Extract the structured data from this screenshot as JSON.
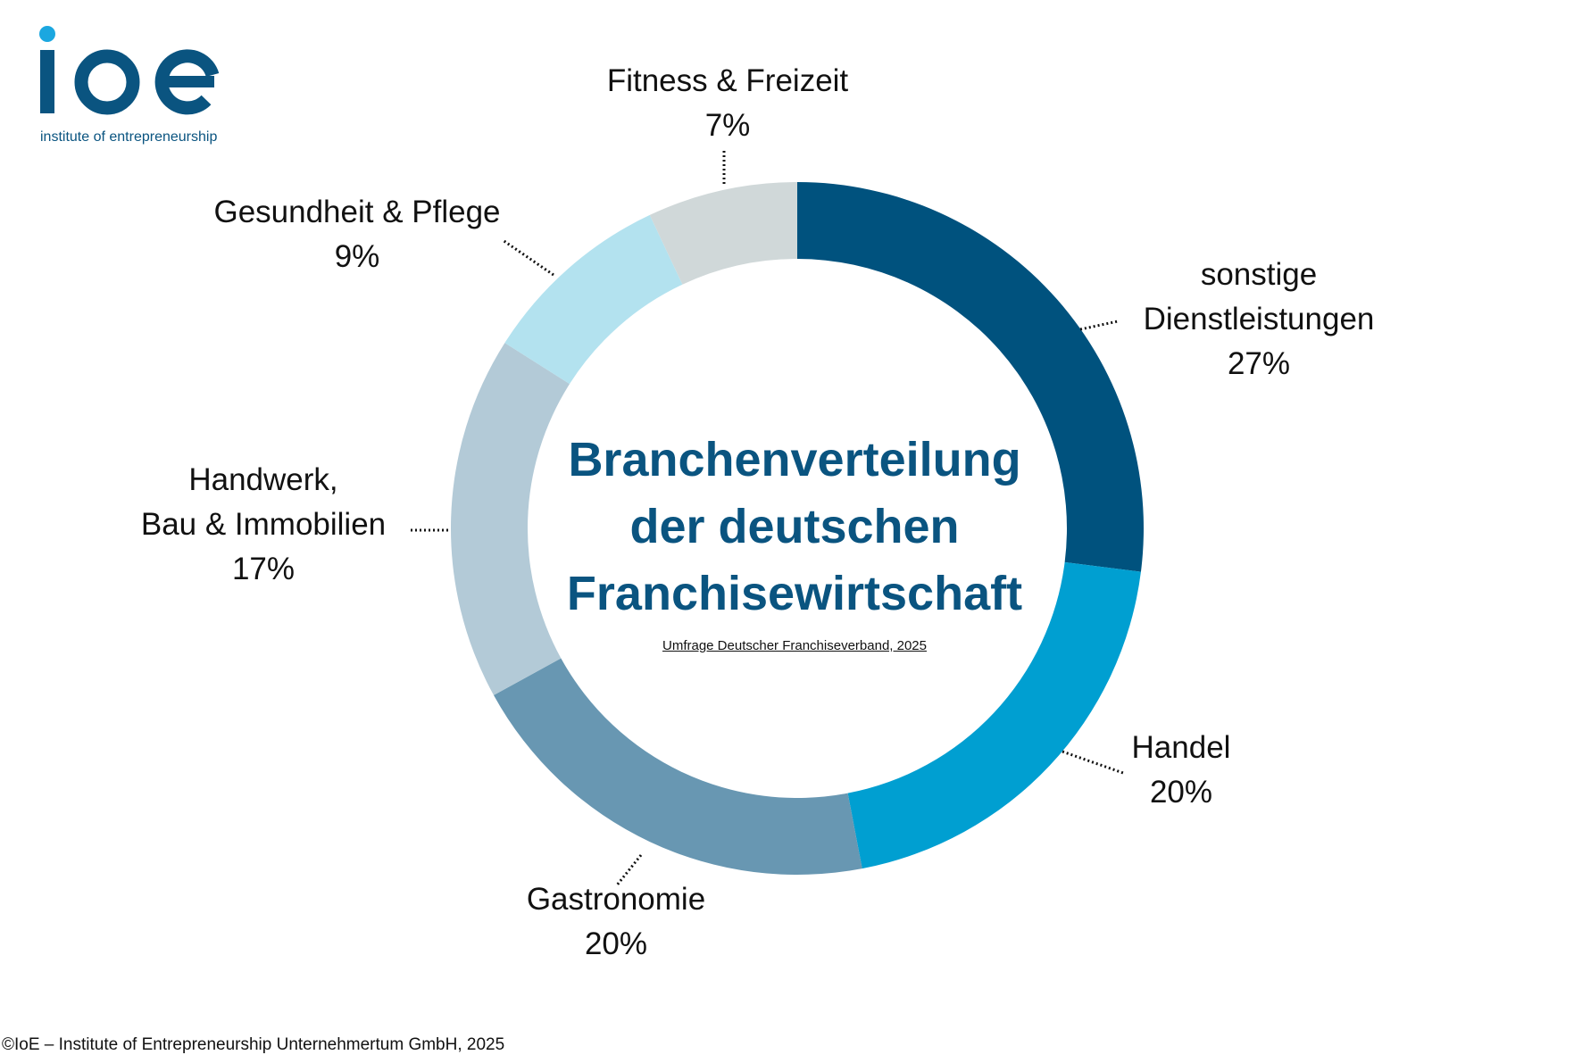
{
  "logo": {
    "wordmark": "ioe",
    "tagline": "institute of entrepreneurship",
    "colors": {
      "dark": "#0a5480",
      "dot": "#1ba7e0"
    }
  },
  "footer": "©IoE – Institute of Entrepreneurship Unternehmertum GmbH, 2025",
  "chart_data": {
    "type": "pie",
    "style": "donut",
    "title_lines": [
      "Branchenverteilung",
      "der deutschen",
      "Franchisewirtschaft"
    ],
    "subtitle": "Umfrage Deutscher Franchiseverband, 2025",
    "start": "12 o'clock, clockwise",
    "slices": [
      {
        "label_lines": [
          "sonstige",
          "Dienstleistungen"
        ],
        "value": 27,
        "value_label": "27%",
        "color": "#00527e"
      },
      {
        "label_lines": [
          "Handel"
        ],
        "value": 20,
        "value_label": "20%",
        "color": "#009fd1"
      },
      {
        "label_lines": [
          "Gastronomie"
        ],
        "value": 20,
        "value_label": "20%",
        "color": "#6897b2"
      },
      {
        "label_lines": [
          "Handwerk,",
          "Bau & Immobilien"
        ],
        "value": 17,
        "value_label": "17%",
        "color": "#b3cad7"
      },
      {
        "label_lines": [
          "Gesundheit & Pflege"
        ],
        "value": 9,
        "value_label": "9%",
        "color": "#b3e2ef"
      },
      {
        "label_lines": [
          "Fitness & Freizeit"
        ],
        "value": 7,
        "value_label": "7%",
        "color": "#d0d8d9"
      }
    ]
  }
}
